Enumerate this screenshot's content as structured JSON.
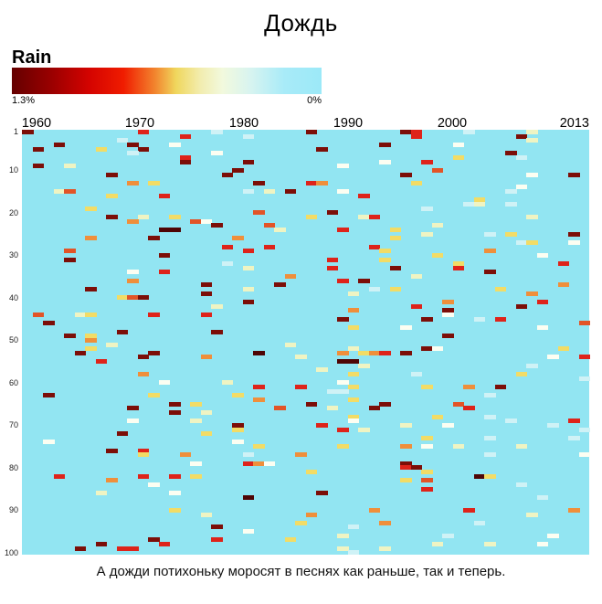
{
  "title": "Дождь",
  "legend": {
    "label": "Rain",
    "max_label": "1.3%",
    "min_label": "0%",
    "gradient_stops": [
      [
        "#650000",
        0
      ],
      [
        "#9b0000",
        13
      ],
      [
        "#d40300",
        25
      ],
      [
        "#f01c00",
        36
      ],
      [
        "#f2822d",
        46
      ],
      [
        "#f0d75d",
        53
      ],
      [
        "#f2edb0",
        61
      ],
      [
        "#f2f9dd",
        68
      ],
      [
        "#d8f4f0",
        77
      ],
      [
        "#a8ebf8",
        88
      ],
      [
        "#9ce9f8",
        100
      ]
    ]
  },
  "caption": "А дожди потихоньку моросят в песнях как раньше, так и теперь.",
  "chart_data": {
    "type": "heatmap",
    "title": "Дождь",
    "subtitle_label": "Rain",
    "x_axis": {
      "tick_labels": [
        "1960",
        "1970",
        "1980",
        "1990",
        "2000",
        "2013"
      ],
      "start_year": 1960,
      "end_year": 2013,
      "columns": 54
    },
    "y_axis": {
      "tick_labels": [
        "1",
        "10",
        "20",
        "30",
        "40",
        "50",
        "60",
        "70",
        "80",
        "90",
        "100"
      ],
      "rows": 100
    },
    "value_range": {
      "max_label": "1.3%",
      "min_label": "0%"
    },
    "background": "#92e5f2",
    "colors": {
      "k": "#4e0505",
      "d": "#7c0e08",
      "r": "#de231a",
      "o": "#e25427",
      "g": "#ef8f3b",
      "y": "#f2dc66",
      "c": "#eff4c3",
      "w": "#fcfef2",
      "p": "#cff2f6"
    },
    "cells": [
      [
        0,
        1,
        "d"
      ],
      [
        11,
        1,
        "r"
      ],
      [
        15,
        2,
        "r"
      ],
      [
        9,
        3,
        "p"
      ],
      [
        3,
        4,
        "d"
      ],
      [
        10,
        4,
        "d"
      ],
      [
        14,
        4,
        "w"
      ],
      [
        1,
        5,
        "d"
      ],
      [
        7,
        5,
        "y"
      ],
      [
        11,
        5,
        "d"
      ],
      [
        10,
        6,
        "p"
      ],
      [
        18,
        6,
        "w"
      ],
      [
        15,
        7,
        "r"
      ],
      [
        15,
        8,
        "d"
      ],
      [
        1,
        9,
        "d"
      ],
      [
        4,
        9,
        "c"
      ],
      [
        8,
        11,
        "d"
      ],
      [
        10,
        13,
        "g"
      ],
      [
        12,
        13,
        "y"
      ],
      [
        3,
        15,
        "c"
      ],
      [
        4,
        15,
        "o"
      ],
      [
        8,
        16,
        "y"
      ],
      [
        13,
        16,
        "r"
      ],
      [
        6,
        19,
        "y"
      ],
      [
        8,
        21,
        "d"
      ],
      [
        11,
        21,
        "c"
      ],
      [
        14,
        21,
        "y"
      ],
      [
        10,
        22,
        "g"
      ],
      [
        16,
        22,
        "o"
      ],
      [
        17,
        22,
        "w"
      ],
      [
        18,
        23,
        "d"
      ],
      [
        13,
        24,
        "k"
      ],
      [
        14,
        24,
        "k"
      ],
      [
        6,
        26,
        "g"
      ],
      [
        12,
        26,
        "d"
      ],
      [
        4,
        29,
        "o"
      ],
      [
        13,
        30,
        "d"
      ],
      [
        4,
        31,
        "d"
      ],
      [
        10,
        34,
        "w"
      ],
      [
        13,
        34,
        "r"
      ],
      [
        10,
        36,
        "g"
      ],
      [
        17,
        37,
        "d"
      ],
      [
        6,
        38,
        "d"
      ],
      [
        17,
        39,
        "d"
      ],
      [
        9,
        40,
        "y"
      ],
      [
        10,
        40,
        "o"
      ],
      [
        11,
        40,
        "d"
      ],
      [
        1,
        44,
        "o"
      ],
      [
        5,
        44,
        "c"
      ],
      [
        6,
        44,
        "y"
      ],
      [
        12,
        44,
        "r"
      ],
      [
        17,
        44,
        "r"
      ],
      [
        2,
        46,
        "d"
      ],
      [
        18,
        48,
        "d"
      ],
      [
        9,
        48,
        "d"
      ],
      [
        4,
        49,
        "d"
      ],
      [
        6,
        49,
        "y"
      ],
      [
        6,
        50,
        "g"
      ],
      [
        18,
        1,
        "p"
      ],
      [
        27,
        1,
        "d"
      ],
      [
        36,
        1,
        "d"
      ],
      [
        21,
        2,
        "p"
      ],
      [
        34,
        4,
        "d"
      ],
      [
        28,
        5,
        "d"
      ],
      [
        21,
        8,
        "d"
      ],
      [
        34,
        8,
        "w"
      ],
      [
        30,
        9,
        "w"
      ],
      [
        20,
        10,
        "d"
      ],
      [
        19,
        11,
        "d"
      ],
      [
        36,
        11,
        "d"
      ],
      [
        22,
        13,
        "d"
      ],
      [
        27,
        13,
        "r"
      ],
      [
        28,
        13,
        "g"
      ],
      [
        21,
        15,
        "p"
      ],
      [
        23,
        15,
        "c"
      ],
      [
        25,
        15,
        "d"
      ],
      [
        30,
        15,
        "w"
      ],
      [
        32,
        16,
        "r"
      ],
      [
        22,
        20,
        "o"
      ],
      [
        29,
        20,
        "d"
      ],
      [
        27,
        21,
        "y"
      ],
      [
        32,
        21,
        "c"
      ],
      [
        33,
        21,
        "r"
      ],
      [
        23,
        23,
        "o"
      ],
      [
        24,
        24,
        "c"
      ],
      [
        30,
        24,
        "r"
      ],
      [
        35,
        24,
        "y"
      ],
      [
        20,
        26,
        "g"
      ],
      [
        35,
        26,
        "y"
      ],
      [
        19,
        28,
        "r"
      ],
      [
        23,
        28,
        "r"
      ],
      [
        33,
        28,
        "r"
      ],
      [
        21,
        29,
        "r"
      ],
      [
        34,
        29,
        "y"
      ],
      [
        29,
        31,
        "r"
      ],
      [
        34,
        31,
        "y"
      ],
      [
        19,
        32,
        "p"
      ],
      [
        21,
        33,
        "c"
      ],
      [
        29,
        33,
        "r"
      ],
      [
        35,
        33,
        "d"
      ],
      [
        25,
        35,
        "g"
      ],
      [
        30,
        36,
        "r"
      ],
      [
        32,
        36,
        "d"
      ],
      [
        24,
        37,
        "d"
      ],
      [
        21,
        38,
        "c"
      ],
      [
        33,
        38,
        "p"
      ],
      [
        35,
        38,
        "y"
      ],
      [
        31,
        39,
        "c"
      ],
      [
        21,
        41,
        "d"
      ],
      [
        18,
        42,
        "c"
      ],
      [
        31,
        43,
        "g"
      ],
      [
        30,
        45,
        "d"
      ],
      [
        31,
        47,
        "y"
      ],
      [
        36,
        47,
        "w"
      ],
      [
        37,
        1,
        "r"
      ],
      [
        42,
        1,
        "p"
      ],
      [
        48,
        1,
        "c"
      ],
      [
        37,
        2,
        "r"
      ],
      [
        47,
        2,
        "d"
      ],
      [
        48,
        3,
        "c"
      ],
      [
        41,
        4,
        "w"
      ],
      [
        46,
        6,
        "d"
      ],
      [
        41,
        7,
        "y"
      ],
      [
        47,
        7,
        "p"
      ],
      [
        38,
        8,
        "r"
      ],
      [
        39,
        10,
        "o"
      ],
      [
        48,
        11,
        "w"
      ],
      [
        52,
        11,
        "d"
      ],
      [
        37,
        13,
        "y"
      ],
      [
        47,
        14,
        "w"
      ],
      [
        46,
        15,
        "p"
      ],
      [
        43,
        17,
        "y"
      ],
      [
        42,
        18,
        "p"
      ],
      [
        43,
        18,
        "c"
      ],
      [
        46,
        18,
        "p"
      ],
      [
        38,
        19,
        "p"
      ],
      [
        48,
        21,
        "c"
      ],
      [
        39,
        23,
        "c"
      ],
      [
        38,
        25,
        "c"
      ],
      [
        44,
        25,
        "p"
      ],
      [
        46,
        25,
        "y"
      ],
      [
        52,
        25,
        "d"
      ],
      [
        47,
        27,
        "p"
      ],
      [
        48,
        27,
        "y"
      ],
      [
        52,
        27,
        "w"
      ],
      [
        44,
        29,
        "g"
      ],
      [
        39,
        30,
        "y"
      ],
      [
        49,
        30,
        "w"
      ],
      [
        41,
        32,
        "y"
      ],
      [
        51,
        32,
        "r"
      ],
      [
        41,
        33,
        "r"
      ],
      [
        44,
        34,
        "d"
      ],
      [
        37,
        35,
        "c"
      ],
      [
        51,
        37,
        "g"
      ],
      [
        45,
        38,
        "y"
      ],
      [
        48,
        39,
        "g"
      ],
      [
        40,
        41,
        "g"
      ],
      [
        49,
        41,
        "r"
      ],
      [
        37,
        42,
        "r"
      ],
      [
        47,
        42,
        "d"
      ],
      [
        40,
        43,
        "d"
      ],
      [
        40,
        44,
        "w"
      ],
      [
        38,
        45,
        "d"
      ],
      [
        43,
        45,
        "p"
      ],
      [
        45,
        45,
        "r"
      ],
      [
        53,
        46,
        "o"
      ],
      [
        49,
        47,
        "w"
      ],
      [
        40,
        49,
        "d"
      ],
      [
        8,
        51,
        "c"
      ],
      [
        6,
        52,
        "y"
      ],
      [
        5,
        53,
        "d"
      ],
      [
        12,
        53,
        "d"
      ],
      [
        11,
        54,
        "d"
      ],
      [
        17,
        54,
        "g"
      ],
      [
        7,
        55,
        "r"
      ],
      [
        11,
        58,
        "g"
      ],
      [
        13,
        60,
        "w"
      ],
      [
        2,
        63,
        "d"
      ],
      [
        12,
        63,
        "y"
      ],
      [
        14,
        65,
        "d"
      ],
      [
        16,
        65,
        "y"
      ],
      [
        10,
        66,
        "d"
      ],
      [
        14,
        67,
        "d"
      ],
      [
        17,
        67,
        "c"
      ],
      [
        10,
        69,
        "w"
      ],
      [
        16,
        69,
        "c"
      ],
      [
        9,
        72,
        "d"
      ],
      [
        17,
        72,
        "y"
      ],
      [
        2,
        74,
        "w"
      ],
      [
        8,
        76,
        "d"
      ],
      [
        11,
        76,
        "r"
      ],
      [
        11,
        77,
        "y"
      ],
      [
        15,
        77,
        "g"
      ],
      [
        16,
        79,
        "w"
      ],
      [
        3,
        82,
        "r"
      ],
      [
        11,
        82,
        "r"
      ],
      [
        14,
        82,
        "r"
      ],
      [
        16,
        82,
        "y"
      ],
      [
        8,
        83,
        "g"
      ],
      [
        12,
        84,
        "w"
      ],
      [
        7,
        86,
        "c"
      ],
      [
        14,
        86,
        "w"
      ],
      [
        14,
        90,
        "y"
      ],
      [
        17,
        91,
        "c"
      ],
      [
        18,
        94,
        "d"
      ],
      [
        18,
        97,
        "r"
      ],
      [
        12,
        97,
        "d"
      ],
      [
        7,
        98,
        "d"
      ],
      [
        13,
        98,
        "r"
      ],
      [
        5,
        99,
        "d"
      ],
      [
        9,
        99,
        "r"
      ],
      [
        10,
        99,
        "r"
      ],
      [
        25,
        51,
        "c"
      ],
      [
        31,
        52,
        "c"
      ],
      [
        22,
        53,
        "k"
      ],
      [
        30,
        53,
        "g"
      ],
      [
        32,
        53,
        "y"
      ],
      [
        33,
        53,
        "g"
      ],
      [
        34,
        53,
        "r"
      ],
      [
        36,
        53,
        "d"
      ],
      [
        26,
        54,
        "c"
      ],
      [
        30,
        55,
        "k"
      ],
      [
        31,
        55,
        "k"
      ],
      [
        32,
        56,
        "c"
      ],
      [
        28,
        57,
        "c"
      ],
      [
        31,
        58,
        "y"
      ],
      [
        19,
        60,
        "c"
      ],
      [
        30,
        60,
        "w"
      ],
      [
        22,
        61,
        "r"
      ],
      [
        26,
        61,
        "r"
      ],
      [
        31,
        61,
        "y"
      ],
      [
        29,
        62,
        "p"
      ],
      [
        30,
        62,
        "p"
      ],
      [
        20,
        63,
        "y"
      ],
      [
        22,
        64,
        "g"
      ],
      [
        31,
        64,
        "y"
      ],
      [
        27,
        65,
        "d"
      ],
      [
        34,
        65,
        "d"
      ],
      [
        24,
        66,
        "o"
      ],
      [
        29,
        66,
        "c"
      ],
      [
        33,
        66,
        "d"
      ],
      [
        31,
        68,
        "y"
      ],
      [
        31,
        69,
        "w"
      ],
      [
        20,
        70,
        "d"
      ],
      [
        28,
        70,
        "r"
      ],
      [
        36,
        70,
        "c"
      ],
      [
        20,
        71,
        "y"
      ],
      [
        30,
        71,
        "r"
      ],
      [
        32,
        71,
        "c"
      ],
      [
        20,
        74,
        "w"
      ],
      [
        22,
        75,
        "y"
      ],
      [
        30,
        75,
        "y"
      ],
      [
        36,
        75,
        "g"
      ],
      [
        21,
        77,
        "p"
      ],
      [
        26,
        77,
        "g"
      ],
      [
        21,
        79,
        "r"
      ],
      [
        22,
        79,
        "g"
      ],
      [
        23,
        79,
        "w"
      ],
      [
        36,
        79,
        "d"
      ],
      [
        27,
        81,
        "y"
      ],
      [
        36,
        83,
        "y"
      ],
      [
        28,
        86,
        "d"
      ],
      [
        21,
        87,
        "k"
      ],
      [
        33,
        90,
        "g"
      ],
      [
        27,
        91,
        "g"
      ],
      [
        26,
        93,
        "y"
      ],
      [
        34,
        93,
        "g"
      ],
      [
        31,
        94,
        "p"
      ],
      [
        21,
        95,
        "w"
      ],
      [
        30,
        96,
        "c"
      ],
      [
        25,
        97,
        "y"
      ],
      [
        30,
        99,
        "c"
      ],
      [
        34,
        99,
        "c"
      ],
      [
        31,
        100,
        "p"
      ],
      [
        38,
        52,
        "d"
      ],
      [
        39,
        52,
        "w"
      ],
      [
        51,
        52,
        "y"
      ],
      [
        50,
        54,
        "w"
      ],
      [
        53,
        54,
        "r"
      ],
      [
        48,
        56,
        "p"
      ],
      [
        37,
        58,
        "p"
      ],
      [
        47,
        58,
        "y"
      ],
      [
        53,
        59,
        "p"
      ],
      [
        38,
        61,
        "y"
      ],
      [
        42,
        61,
        "g"
      ],
      [
        45,
        61,
        "d"
      ],
      [
        44,
        63,
        "p"
      ],
      [
        41,
        65,
        "o"
      ],
      [
        42,
        66,
        "r"
      ],
      [
        39,
        68,
        "y"
      ],
      [
        44,
        68,
        "p"
      ],
      [
        46,
        69,
        "p"
      ],
      [
        52,
        69,
        "r"
      ],
      [
        40,
        70,
        "w"
      ],
      [
        50,
        70,
        "p"
      ],
      [
        53,
        71,
        "p"
      ],
      [
        38,
        73,
        "y"
      ],
      [
        44,
        73,
        "p"
      ],
      [
        52,
        73,
        "p"
      ],
      [
        38,
        75,
        "w"
      ],
      [
        41,
        75,
        "c"
      ],
      [
        47,
        75,
        "c"
      ],
      [
        44,
        77,
        "p"
      ],
      [
        53,
        77,
        "w"
      ],
      [
        36,
        80,
        "r"
      ],
      [
        37,
        80,
        "d"
      ],
      [
        38,
        81,
        "y"
      ],
      [
        43,
        82,
        "k"
      ],
      [
        44,
        82,
        "y"
      ],
      [
        38,
        83,
        "o"
      ],
      [
        47,
        84,
        "p"
      ],
      [
        38,
        85,
        "r"
      ],
      [
        49,
        87,
        "p"
      ],
      [
        42,
        90,
        "r"
      ],
      [
        52,
        90,
        "g"
      ],
      [
        48,
        91,
        "c"
      ],
      [
        43,
        93,
        "p"
      ],
      [
        40,
        96,
        "p"
      ],
      [
        50,
        96,
        "w"
      ],
      [
        39,
        98,
        "c"
      ],
      [
        44,
        98,
        "c"
      ],
      [
        49,
        98,
        "w"
      ]
    ]
  }
}
